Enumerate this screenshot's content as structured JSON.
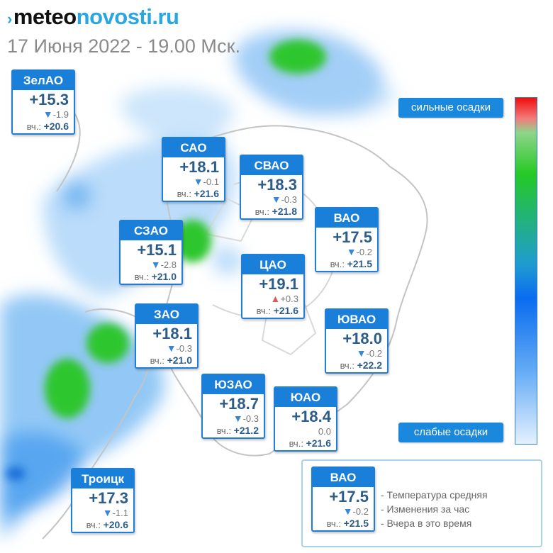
{
  "brand": {
    "prefix": "meteo",
    "suffix": "novosti.ru"
  },
  "date": "17 Июня 2022 - 19.00 Мск.",
  "scale": {
    "strong": "сильные осадки",
    "weak": "слабые осадки"
  },
  "districts": [
    {
      "name": "ЗелАО",
      "temp": "+15.3",
      "trend": "down",
      "change": "-1.9",
      "yesterday_label": "вч.:",
      "yesterday": "+20.6"
    },
    {
      "name": "САО",
      "temp": "+18.1",
      "trend": "down",
      "change": "-0.1",
      "yesterday_label": "вч.:",
      "yesterday": "+21.6"
    },
    {
      "name": "СВАО",
      "temp": "+18.3",
      "trend": "down",
      "change": "-0.3",
      "yesterday_label": "вч.:",
      "yesterday": "+21.8"
    },
    {
      "name": "ВАО",
      "temp": "+17.5",
      "trend": "down",
      "change": "-0.2",
      "yesterday_label": "вч.:",
      "yesterday": "+21.5"
    },
    {
      "name": "СЗАО",
      "temp": "+15.1",
      "trend": "down",
      "change": "-2.8",
      "yesterday_label": "вч.:",
      "yesterday": "+21.0"
    },
    {
      "name": "ЦАО",
      "temp": "+19.1",
      "trend": "up",
      "change": "+0.3",
      "yesterday_label": "вч.:",
      "yesterday": "+21.6"
    },
    {
      "name": "ЗАО",
      "temp": "+18.1",
      "trend": "down",
      "change": "-0.3",
      "yesterday_label": "вч.:",
      "yesterday": "+21.0"
    },
    {
      "name": "ЮВАО",
      "temp": "+18.0",
      "trend": "down",
      "change": "-0.2",
      "yesterday_label": "вч.:",
      "yesterday": "+22.2"
    },
    {
      "name": "ЮЗАО",
      "temp": "+18.7",
      "trend": "down",
      "change": "-0.3",
      "yesterday_label": "вч.:",
      "yesterday": "+21.2"
    },
    {
      "name": "ЮАО",
      "temp": "+18.4",
      "trend": "none",
      "change": "0.0",
      "yesterday_label": "вч.:",
      "yesterday": "+21.6"
    },
    {
      "name": "Троицк",
      "temp": "+17.3",
      "trend": "down",
      "change": "-1.1",
      "yesterday_label": "вч.:",
      "yesterday": "+20.6"
    }
  ],
  "legend": {
    "sample": {
      "name": "ВАО",
      "temp": "+17.5",
      "trend": "down",
      "change": "-0.2",
      "yesterday_label": "вч.:",
      "yesterday": "+21.5"
    },
    "items": [
      "- Температура средняя",
      "- Изменения за час",
      "- Вчера в это время"
    ]
  },
  "arrows": {
    "down": "▼",
    "up": "▲",
    "none": ""
  },
  "colors": {
    "card_header": "#1a7fd9",
    "temp_text": "#2b5c8a",
    "down_arrow": "#3a86d6",
    "up_arrow": "#e0595d",
    "precip_light": "#5aa8f0",
    "precip_heavy": "#2ec62e"
  }
}
